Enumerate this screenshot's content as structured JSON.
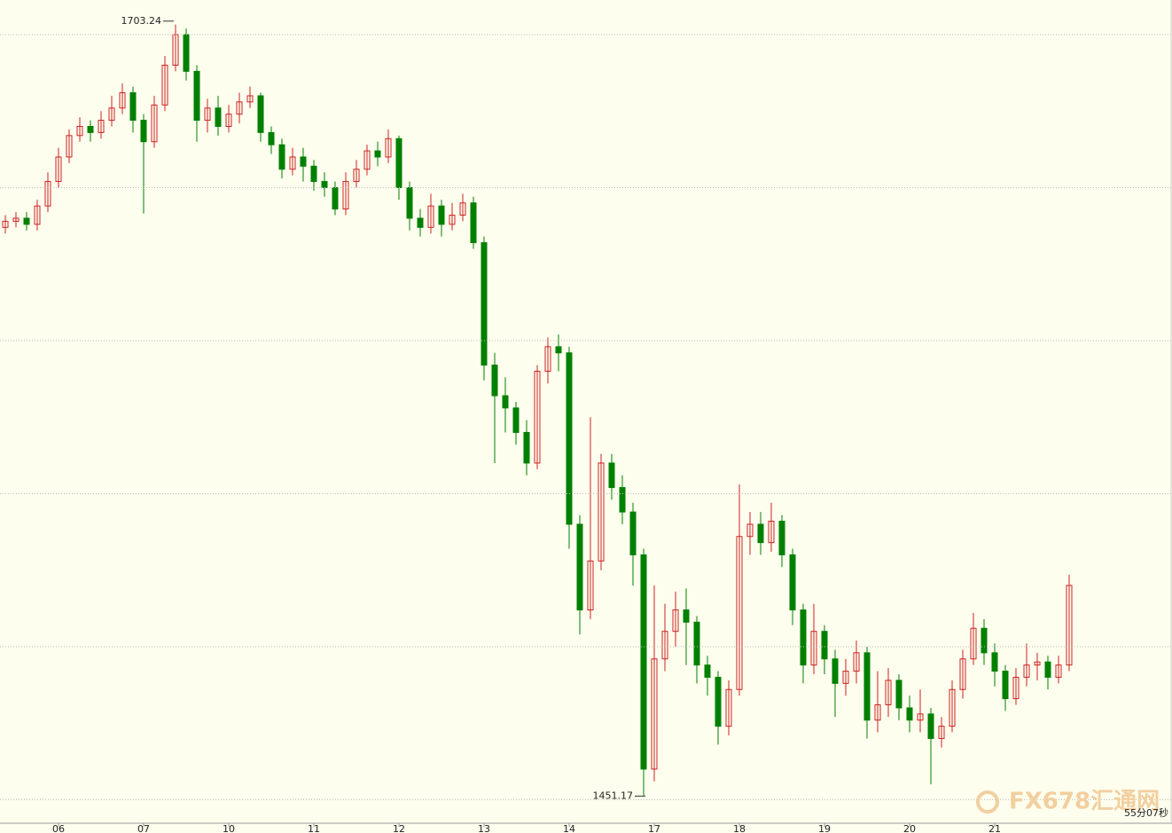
{
  "chart_data": {
    "type": "candlestick",
    "watermark": "FX678汇通网",
    "timer": "55分07秒",
    "categories": [
      null,
      null,
      null,
      null,
      null,
      "06",
      null,
      null,
      null,
      null,
      null,
      null,
      null,
      "07",
      null,
      null,
      null,
      null,
      null,
      null,
      null,
      "10",
      null,
      null,
      null,
      null,
      null,
      null,
      null,
      "11",
      null,
      null,
      null,
      null,
      null,
      null,
      null,
      "12",
      null,
      null,
      null,
      null,
      null,
      null,
      null,
      "13",
      null,
      null,
      null,
      null,
      null,
      null,
      null,
      "14",
      null,
      null,
      null,
      null,
      null,
      null,
      null,
      "17",
      null,
      null,
      null,
      null,
      null,
      null,
      null,
      "18",
      null,
      null,
      null,
      null,
      null,
      null,
      null,
      "19",
      null,
      null,
      null,
      null,
      null,
      null,
      null,
      "20",
      null,
      null,
      null,
      null,
      null,
      null,
      null,
      "21",
      null,
      null,
      null,
      null,
      null,
      null,
      null
    ],
    "open": [
      1637,
      1639,
      1640,
      1638,
      1644,
      1652,
      1660,
      1667,
      1670,
      1668,
      1672,
      1676,
      1681,
      1672,
      1665,
      1677,
      1690,
      1700,
      1688,
      1672,
      1676,
      1670,
      1674,
      1678,
      1680,
      1668,
      1664,
      1656,
      1660,
      1657,
      1652,
      1650,
      1643,
      1652,
      1656,
      1662,
      1660,
      1666,
      1650,
      1640,
      1637,
      1644,
      1638,
      1641,
      1645,
      1632,
      1592,
      1582,
      1578,
      1570,
      1560,
      1590,
      1598,
      1596,
      1540,
      1512,
      1528,
      1560,
      1552,
      1544,
      1530,
      1460,
      1496,
      1505,
      1512,
      1508,
      1494,
      1490,
      1474,
      1486,
      1536,
      1540,
      1534,
      1541,
      1530,
      1512,
      1494,
      1505,
      1496,
      1488,
      1492,
      1498,
      1476,
      1481,
      1489,
      1480,
      1476,
      1478,
      1470,
      1474,
      1486,
      1496,
      1506,
      1498,
      1492,
      1483,
      1490,
      1494,
      1495,
      1490,
      1494
    ],
    "high": [
      1641,
      1642,
      1642,
      1646,
      1655,
      1663,
      1669,
      1673,
      1672,
      1675,
      1680,
      1684,
      1683,
      1674,
      1680,
      1693,
      1703.24,
      1702,
      1690,
      1679,
      1680,
      1677,
      1681,
      1683,
      1681,
      1670,
      1666,
      1663,
      1663,
      1659,
      1655,
      1652,
      1655,
      1659,
      1664,
      1665,
      1669,
      1667,
      1652,
      1643,
      1648,
      1646,
      1645,
      1648,
      1647,
      1634,
      1596,
      1588,
      1580,
      1574,
      1592,
      1601,
      1602,
      1598,
      1543,
      1575,
      1563,
      1563,
      1556,
      1547,
      1532,
      1520,
      1514,
      1518,
      1519,
      1510,
      1497,
      1492,
      1489,
      1553,
      1544,
      1544,
      1547,
      1543,
      1532,
      1514,
      1514,
      1507,
      1499,
      1496,
      1502,
      1500,
      1492,
      1493,
      1491,
      1484,
      1486,
      1480,
      1477,
      1489,
      1499,
      1511,
      1509,
      1501,
      1494,
      1493,
      1501,
      1498,
      1497,
      1497,
      1523.5
    ],
    "low": [
      1635,
      1637,
      1636,
      1636,
      1642,
      1650,
      1658,
      1665,
      1665,
      1666,
      1670,
      1674,
      1668,
      1641.5,
      1663,
      1675,
      1688,
      1685,
      1665,
      1668,
      1667,
      1668,
      1671,
      1676,
      1665,
      1661,
      1653,
      1654,
      1652,
      1649,
      1647,
      1641,
      1641,
      1650,
      1654,
      1657,
      1658,
      1646,
      1636,
      1634,
      1635,
      1634,
      1636,
      1639,
      1630,
      1587,
      1560,
      1570,
      1566,
      1556,
      1558,
      1586,
      1590,
      1532,
      1504,
      1509,
      1525,
      1548,
      1540,
      1520,
      1451.17,
      1456,
      1492,
      1500,
      1494,
      1488,
      1484,
      1468,
      1471,
      1484,
      1530,
      1530,
      1531,
      1526,
      1507,
      1488,
      1491,
      1491,
      1477,
      1484,
      1488,
      1470,
      1472,
      1477,
      1476,
      1472,
      1472,
      1455,
      1467,
      1472,
      1483,
      1494,
      1494,
      1487,
      1479,
      1481,
      1487,
      1489,
      1486,
      1488,
      1492
    ],
    "close": [
      1639,
      1640,
      1638,
      1644,
      1652,
      1660,
      1667,
      1670,
      1668,
      1672,
      1676,
      1681,
      1672,
      1665,
      1677,
      1690,
      1700,
      1688,
      1672,
      1676,
      1670,
      1674,
      1678,
      1680,
      1668,
      1664,
      1656,
      1660,
      1657,
      1652,
      1650,
      1643,
      1652,
      1656,
      1662,
      1660,
      1666,
      1650,
      1640,
      1637,
      1644,
      1638,
      1641,
      1645,
      1632,
      1592,
      1582,
      1578,
      1570,
      1560,
      1590,
      1598,
      1596,
      1540,
      1512,
      1528,
      1560,
      1552,
      1544,
      1530,
      1460,
      1496,
      1505,
      1512,
      1508,
      1494,
      1490,
      1474,
      1486,
      1536,
      1540,
      1534,
      1541,
      1530,
      1512,
      1494,
      1505,
      1496,
      1488,
      1492,
      1498,
      1476,
      1481,
      1489,
      1480,
      1476,
      1478,
      1470,
      1474,
      1486,
      1496,
      1506,
      1498,
      1492,
      1483,
      1490,
      1494,
      1495,
      1490,
      1494,
      1520
    ],
    "up_color": "#cc2222",
    "down_color": "#008000",
    "ylim": [
      1442.3,
      1711.3
    ],
    "ygrid": [
      1450,
      1500,
      1550,
      1600,
      1650,
      1700
    ]
  }
}
